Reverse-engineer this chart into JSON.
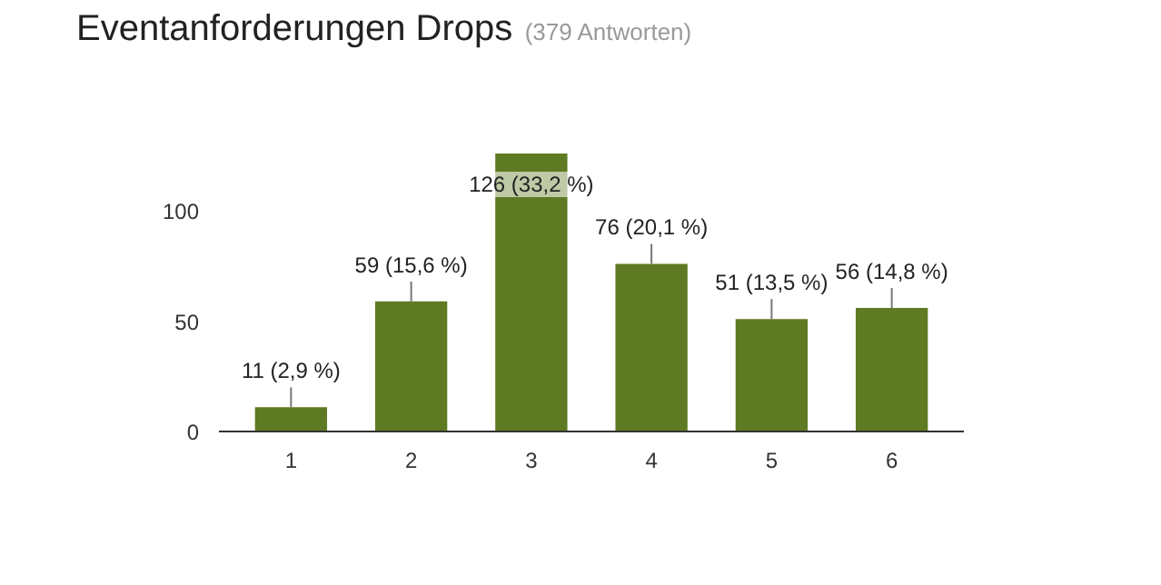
{
  "chart_data": {
    "type": "bar",
    "title": "Eventanforderungen Drops",
    "subtitle": "(379 Antworten)",
    "categories": [
      "1",
      "2",
      "3",
      "4",
      "5",
      "6"
    ],
    "values": [
      11,
      59,
      126,
      76,
      51,
      56
    ],
    "value_labels": [
      "11 (2,9 %)",
      "59 (15,6 %)",
      "126 (33,2 %)",
      "76 (20,1 %)",
      "51 (13,5 %)",
      "56 (14,8 %)"
    ],
    "color": "#5e7a22",
    "ylim": [
      0,
      126
    ],
    "yticks": [
      0,
      50,
      100
    ],
    "grid": false
  }
}
